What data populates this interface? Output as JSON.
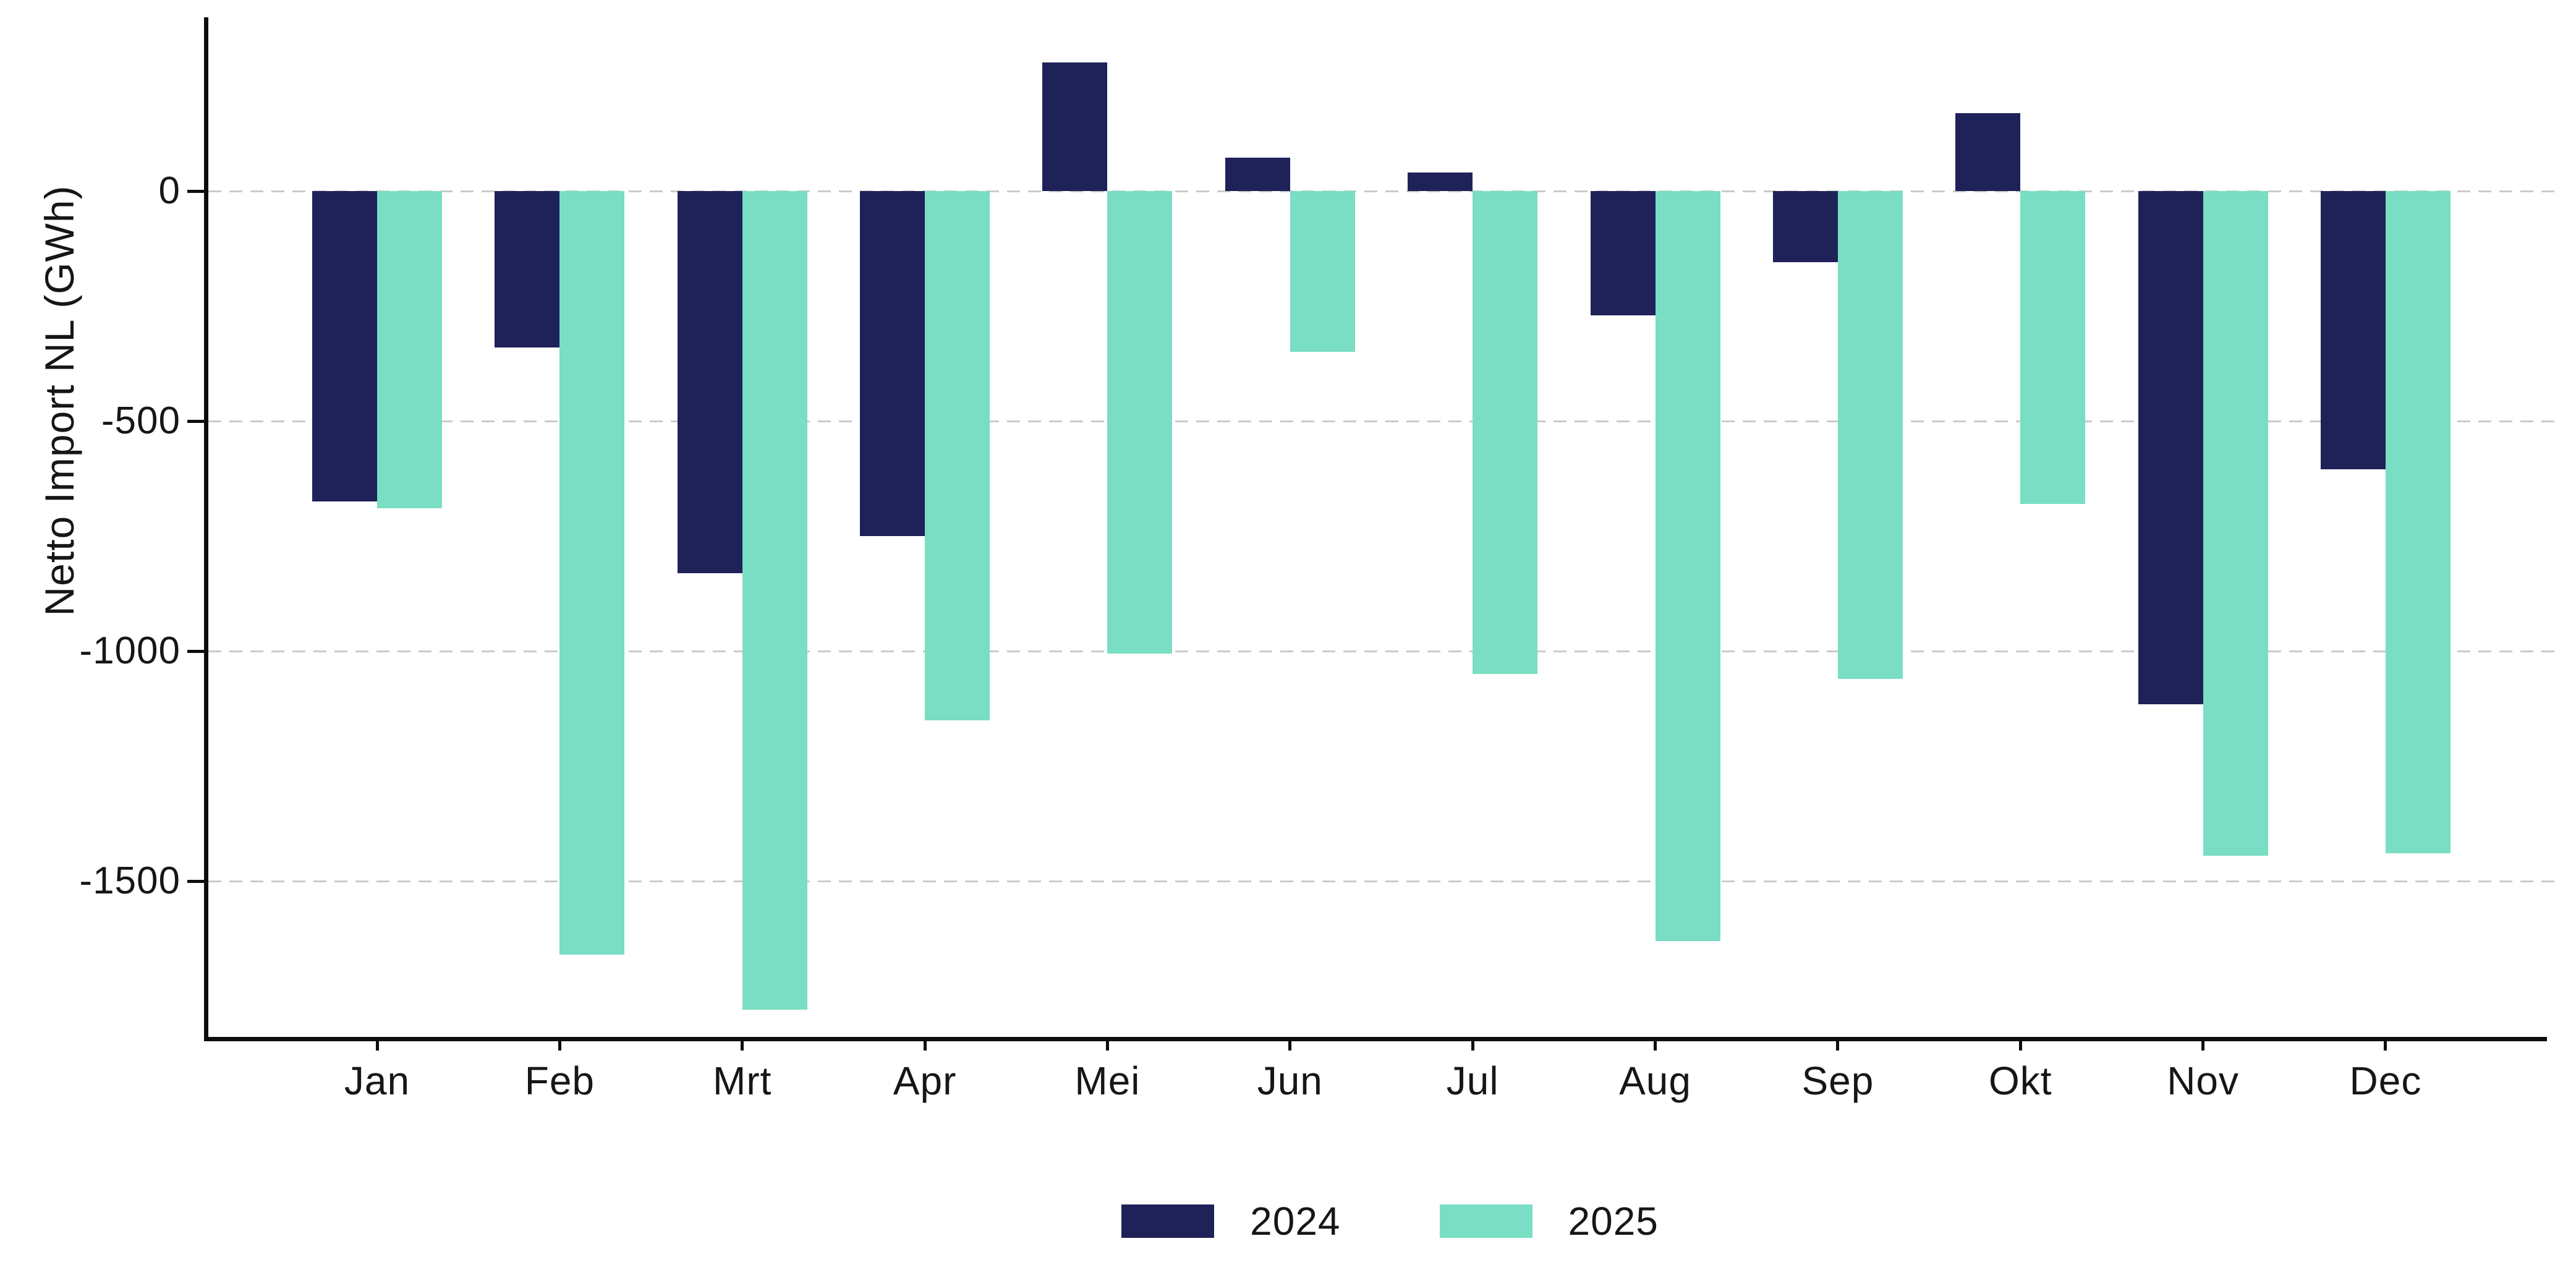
{
  "chart_data": {
    "type": "bar",
    "title": "",
    "xlabel": "",
    "ylabel": "Netto Import NL (GWh)",
    "categories": [
      "Jan",
      "Feb",
      "Mrt",
      "Apr",
      "Mei",
      "Jun",
      "Jul",
      "Aug",
      "Sep",
      "Okt",
      "Nov",
      "Dec"
    ],
    "series": [
      {
        "name": "2024",
        "color": "#1F2159",
        "values": [
          -675,
          -340,
          -830,
          -750,
          280,
          72,
          40,
          -270,
          -155,
          170,
          -1115,
          -605
        ]
      },
      {
        "name": "2025",
        "color": "#79DEC3",
        "values": [
          -690,
          -1660,
          -1780,
          -1150,
          -1005,
          -350,
          -1050,
          -1630,
          -1060,
          -680,
          -1445,
          -1440
        ]
      }
    ],
    "yticks": [
      {
        "value": 0,
        "label": "0"
      },
      {
        "value": -500,
        "label": "-500"
      },
      {
        "value": -1000,
        "label": "-1000"
      },
      {
        "value": -1500,
        "label": "-1500"
      }
    ],
    "ylim": [
      -1843,
      375
    ],
    "grid": "horizontal-dashed",
    "legend_position": "bottom-center",
    "colors": {
      "background": "#ffffff",
      "gridline": "#cbcbcb",
      "axis": "#0d0d0d",
      "text": "#161616"
    }
  }
}
